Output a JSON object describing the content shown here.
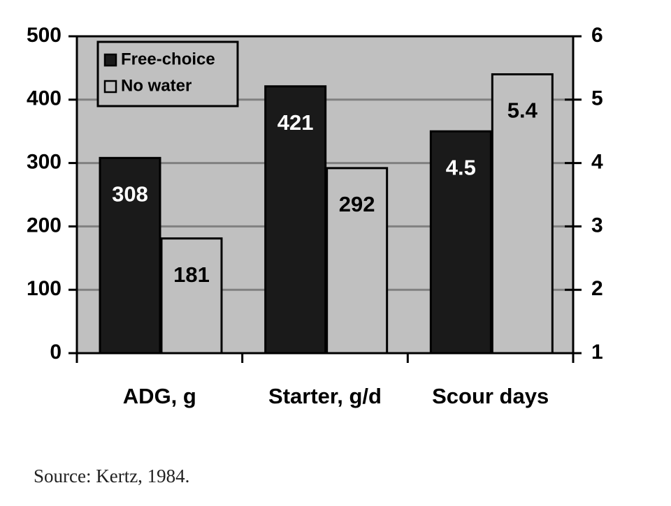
{
  "chart_data": {
    "type": "bar",
    "categories": [
      "ADG, g",
      "Starter, g/d",
      "Scour days"
    ],
    "category_axis": [
      "y",
      "y",
      "y2"
    ],
    "series": [
      {
        "name": "Free-choice",
        "color": "#1a1a1a",
        "label_color": "#ffffff",
        "values": [
          308,
          421,
          4.5
        ]
      },
      {
        "name": "No water",
        "color": "#c0c0c0",
        "label_color": "#000000",
        "values": [
          181,
          292,
          5.4
        ]
      }
    ],
    "ylim": [
      0,
      500
    ],
    "yticks": [
      0,
      100,
      200,
      300,
      400,
      500
    ],
    "y2lim": [
      1,
      6
    ],
    "y2ticks": [
      1,
      2,
      3,
      4,
      5,
      6
    ],
    "grid": true,
    "legend": "upper left",
    "background": "#c0c0c0",
    "source": "Source:  Kertz, 1984."
  }
}
